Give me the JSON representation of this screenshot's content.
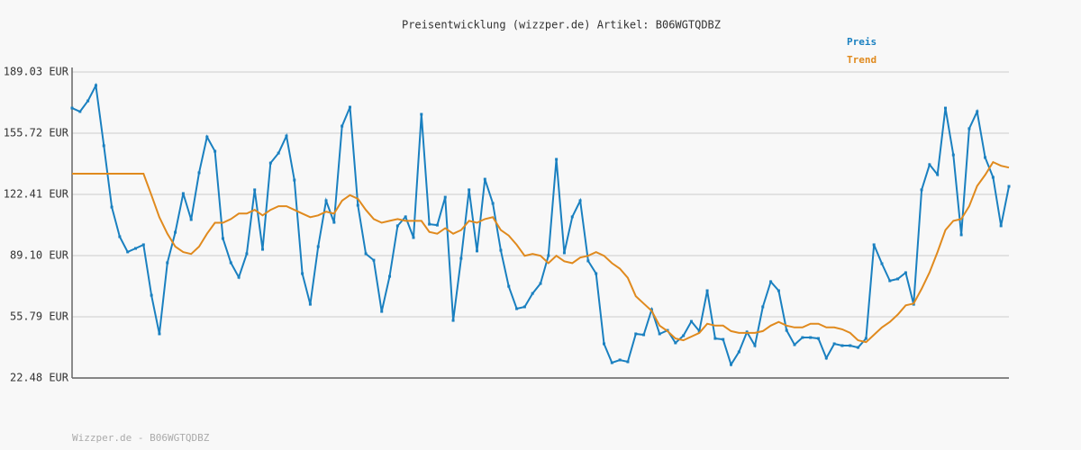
{
  "chart_data": {
    "type": "line",
    "title": "Preisentwicklung (wizzper.de) Artikel: B06WGTQDBZ",
    "footer": "Wizzper.de - B06WGTQDBZ",
    "ylim": [
      22.48,
      189.03
    ],
    "yticks": [
      {
        "value": 22.48,
        "label": "22.48 EUR"
      },
      {
        "value": 55.79,
        "label": "55.79 EUR"
      },
      {
        "value": 89.1,
        "label": "89.10 EUR"
      },
      {
        "value": 122.41,
        "label": "122.41 EUR"
      },
      {
        "value": 155.72,
        "label": "155.72 EUR"
      },
      {
        "value": 189.03,
        "label": "189.03 EUR"
      }
    ],
    "grid": true,
    "legend": "top-right",
    "series": [
      {
        "name": "Preis",
        "color": "#1a80c0",
        "markers": true,
        "values": [
          169.4,
          167.5,
          173.3,
          181.7,
          148.9,
          115.5,
          99.4,
          91.1,
          93.0,
          95.0,
          67.5,
          46.5,
          85.2,
          101.8,
          122.9,
          108.7,
          134.2,
          153.7,
          145.9,
          98.4,
          85.2,
          77.3,
          90.1,
          124.9,
          92.5,
          139.5,
          144.9,
          154.2,
          130.2,
          79.3,
          62.6,
          94.0,
          119.0,
          107.2,
          159.6,
          169.9,
          116.5,
          90.1,
          86.6,
          58.7,
          77.8,
          105.3,
          110.2,
          98.9,
          166.0,
          106.2,
          105.7,
          120.9,
          53.8,
          87.6,
          124.9,
          91.6,
          130.7,
          117.5,
          92.0,
          72.4,
          60.2,
          61.2,
          68.5,
          73.9,
          89.1,
          141.5,
          90.6,
          110.2,
          119.0,
          86.2,
          79.3,
          41.1,
          30.8,
          32.3,
          31.3,
          46.5,
          46.0,
          59.7,
          46.5,
          48.4,
          41.6,
          45.5,
          53.3,
          48.0,
          70.0,
          44.0,
          43.5,
          29.8,
          36.7,
          47.5,
          40.1,
          61.2,
          74.9,
          70.0,
          48.4,
          40.6,
          44.5,
          44.5,
          44.0,
          33.3,
          41.1,
          40.1,
          40.1,
          39.1,
          44.0,
          95.0,
          84.7,
          75.4,
          76.4,
          79.8,
          62.6,
          124.9,
          138.6,
          133.2,
          169.4,
          143.9,
          100.4,
          158.2,
          167.5,
          142.5,
          131.7,
          105.3,
          126.8
        ]
      },
      {
        "name": "Trend",
        "color": "#e08a1e",
        "markers": false,
        "values": [
          133.7,
          133.7,
          133.7,
          133.7,
          133.7,
          133.7,
          133.7,
          133.7,
          133.7,
          133.7,
          122,
          110,
          101,
          94,
          91,
          90,
          94,
          101,
          107,
          107,
          109,
          112,
          112,
          114,
          111,
          114,
          116,
          116,
          114,
          112,
          110,
          111,
          113,
          112,
          119,
          122,
          120,
          114,
          109,
          107,
          108,
          109,
          108,
          108,
          108,
          102,
          101,
          104,
          101,
          103,
          108,
          107,
          109,
          110,
          103,
          100,
          95,
          89,
          90,
          89,
          85,
          89,
          86,
          85,
          88,
          89,
          91,
          89,
          85,
          82,
          77,
          67,
          63,
          59,
          51,
          48,
          44,
          43,
          45,
          47,
          52,
          51,
          51,
          48,
          47,
          47,
          47,
          48,
          51,
          53,
          51,
          50,
          50,
          52,
          52,
          50,
          50,
          49,
          47,
          43,
          42,
          46,
          50,
          53,
          57,
          62,
          63,
          71,
          80,
          91,
          103,
          108,
          109,
          116,
          127,
          133,
          140,
          138,
          137
        ]
      }
    ]
  }
}
